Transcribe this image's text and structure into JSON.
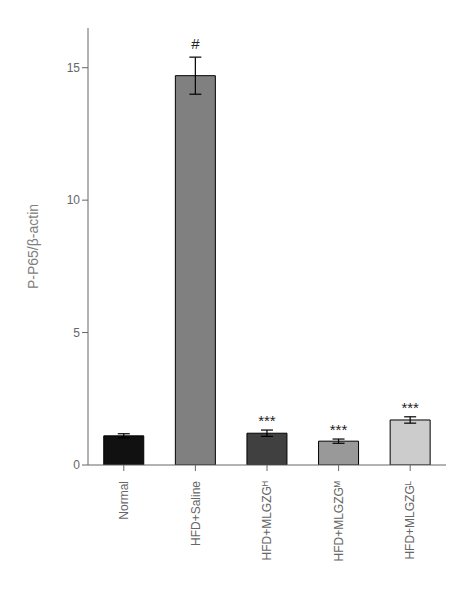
{
  "chart_data": {
    "type": "bar",
    "categories": [
      "Normal",
      "HFD+Saline",
      "HFD+MLGZGᴴ",
      "HFD+MLGZGᴹ",
      "HFD+MLGZGᴸ"
    ],
    "values": [
      1.1,
      14.7,
      1.2,
      0.9,
      1.7
    ],
    "errors": [
      0.08,
      0.7,
      0.12,
      0.08,
      0.12
    ],
    "colors": [
      "#111111",
      "#808080",
      "#404040",
      "#999999",
      "#cccccc"
    ],
    "ylabel": "P-P65/β-actin",
    "ylim": [
      0,
      16.5
    ],
    "yticks": [
      0,
      5,
      10,
      15
    ],
    "annotations": [
      null,
      "#",
      "***",
      "***",
      "***"
    ],
    "grid": false
  }
}
